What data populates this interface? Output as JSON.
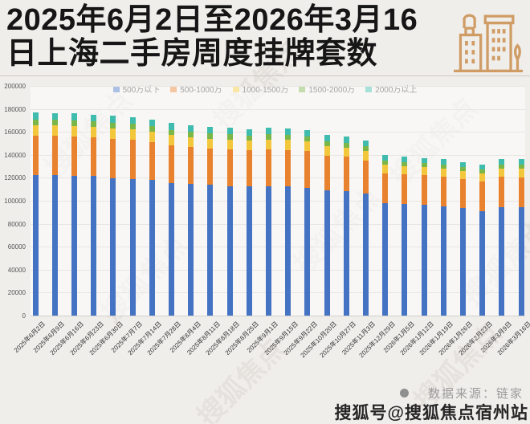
{
  "title": {
    "line1": "2025年6月2日至2026年3月16",
    "line2": "日上海二手房周度挂牌套数"
  },
  "legend": [
    {
      "label": "500万以下",
      "color": "#4573c4"
    },
    {
      "label": "500-1000万",
      "color": "#e8822e"
    },
    {
      "label": "1000-1500万",
      "color": "#f3c73b"
    },
    {
      "label": "1500-2000万",
      "color": "#7ab648"
    },
    {
      "label": "2000万以上",
      "color": "#3fbcae"
    }
  ],
  "chart_data": {
    "type": "bar",
    "subtype": "stacked-vertical",
    "title": "2025年6月2日至2026年3月16日上海二手房周度挂牌套数",
    "ylim": [
      0,
      200000
    ],
    "ytick_interval": 20000,
    "yticks": [
      "200000",
      "180000",
      "160000",
      "140000",
      "120000",
      "100000",
      "80000",
      "60000",
      "40000",
      "20000",
      "0"
    ],
    "grid": true,
    "legend_position": "top",
    "categories": [
      "2025年6月2日",
      "2025年6月9日",
      "2025年6月16日",
      "2025年6月23日",
      "2025年6月30日",
      "2025年7月7日",
      "2025年7月14日",
      "2025年7月28日",
      "2025年8月4日",
      "2025年8月11日",
      "2025年8月18日",
      "2025年8月25日",
      "2025年9月1日",
      "2025年9月15日",
      "2025年9月22日",
      "2025年10月20日",
      "2025年10月27日",
      "2025年11月3日",
      "2025年12月29日",
      "2026年1月5日",
      "2026年1月12日",
      "2026年1月19日",
      "2026年1月26日",
      "2026年2月23日",
      "2026年3月9日",
      "2026年3月16日"
    ],
    "series": [
      {
        "name": "500万以下",
        "color": "#4573c4",
        "values": [
          122200,
          122100,
          121900,
          121700,
          119400,
          119000,
          118300,
          115200,
          114500,
          114200,
          112900,
          112500,
          112800,
          112800,
          111500,
          109400,
          108600,
          106300,
          97700,
          97000,
          96400,
          94800,
          94000,
          91100,
          94500,
          94200
        ]
      },
      {
        "name": "500-1000万",
        "color": "#e8822e",
        "values": [
          34500,
          34300,
          34200,
          33600,
          34500,
          34000,
          33000,
          33000,
          32300,
          31400,
          31800,
          31400,
          31900,
          31600,
          31700,
          30000,
          29800,
          29000,
          26400,
          26100,
          25800,
          26000,
          25100,
          25500,
          26200,
          26400
        ]
      },
      {
        "name": "1000-1500万",
        "color": "#f3c73b",
        "values": [
          9300,
          9200,
          9200,
          9000,
          9300,
          9100,
          8900,
          8900,
          8700,
          8500,
          8600,
          8500,
          8600,
          8500,
          8500,
          8100,
          8000,
          7800,
          7100,
          7100,
          7000,
          7000,
          6800,
          6900,
          7100,
          7100
        ]
      },
      {
        "name": "1500-2000万",
        "color": "#7ab648",
        "values": [
          4900,
          4900,
          4900,
          4800,
          4900,
          4800,
          4700,
          4700,
          4600,
          4500,
          4500,
          4500,
          4500,
          4500,
          4500,
          4300,
          4300,
          4200,
          3800,
          3700,
          3700,
          3700,
          3600,
          3600,
          3700,
          3800
        ]
      },
      {
        "name": "2000万以上",
        "color": "#3fbcae",
        "values": [
          6000,
          6000,
          6000,
          5900,
          6000,
          6000,
          5700,
          5800,
          5600,
          5500,
          5600,
          5500,
          5600,
          5500,
          5600,
          5300,
          5200,
          5100,
          4600,
          4600,
          4400,
          4600,
          4300,
          4400,
          4600,
          4600
        ]
      }
    ]
  },
  "footer": {
    "source_label": "数据来源：链家"
  },
  "watermark": {
    "bottom": "搜狐号@搜狐焦点宿州站",
    "background_pattern": "搜狐焦点"
  },
  "icons": {
    "header": "buildings-icon",
    "footer": "dot-icon"
  }
}
